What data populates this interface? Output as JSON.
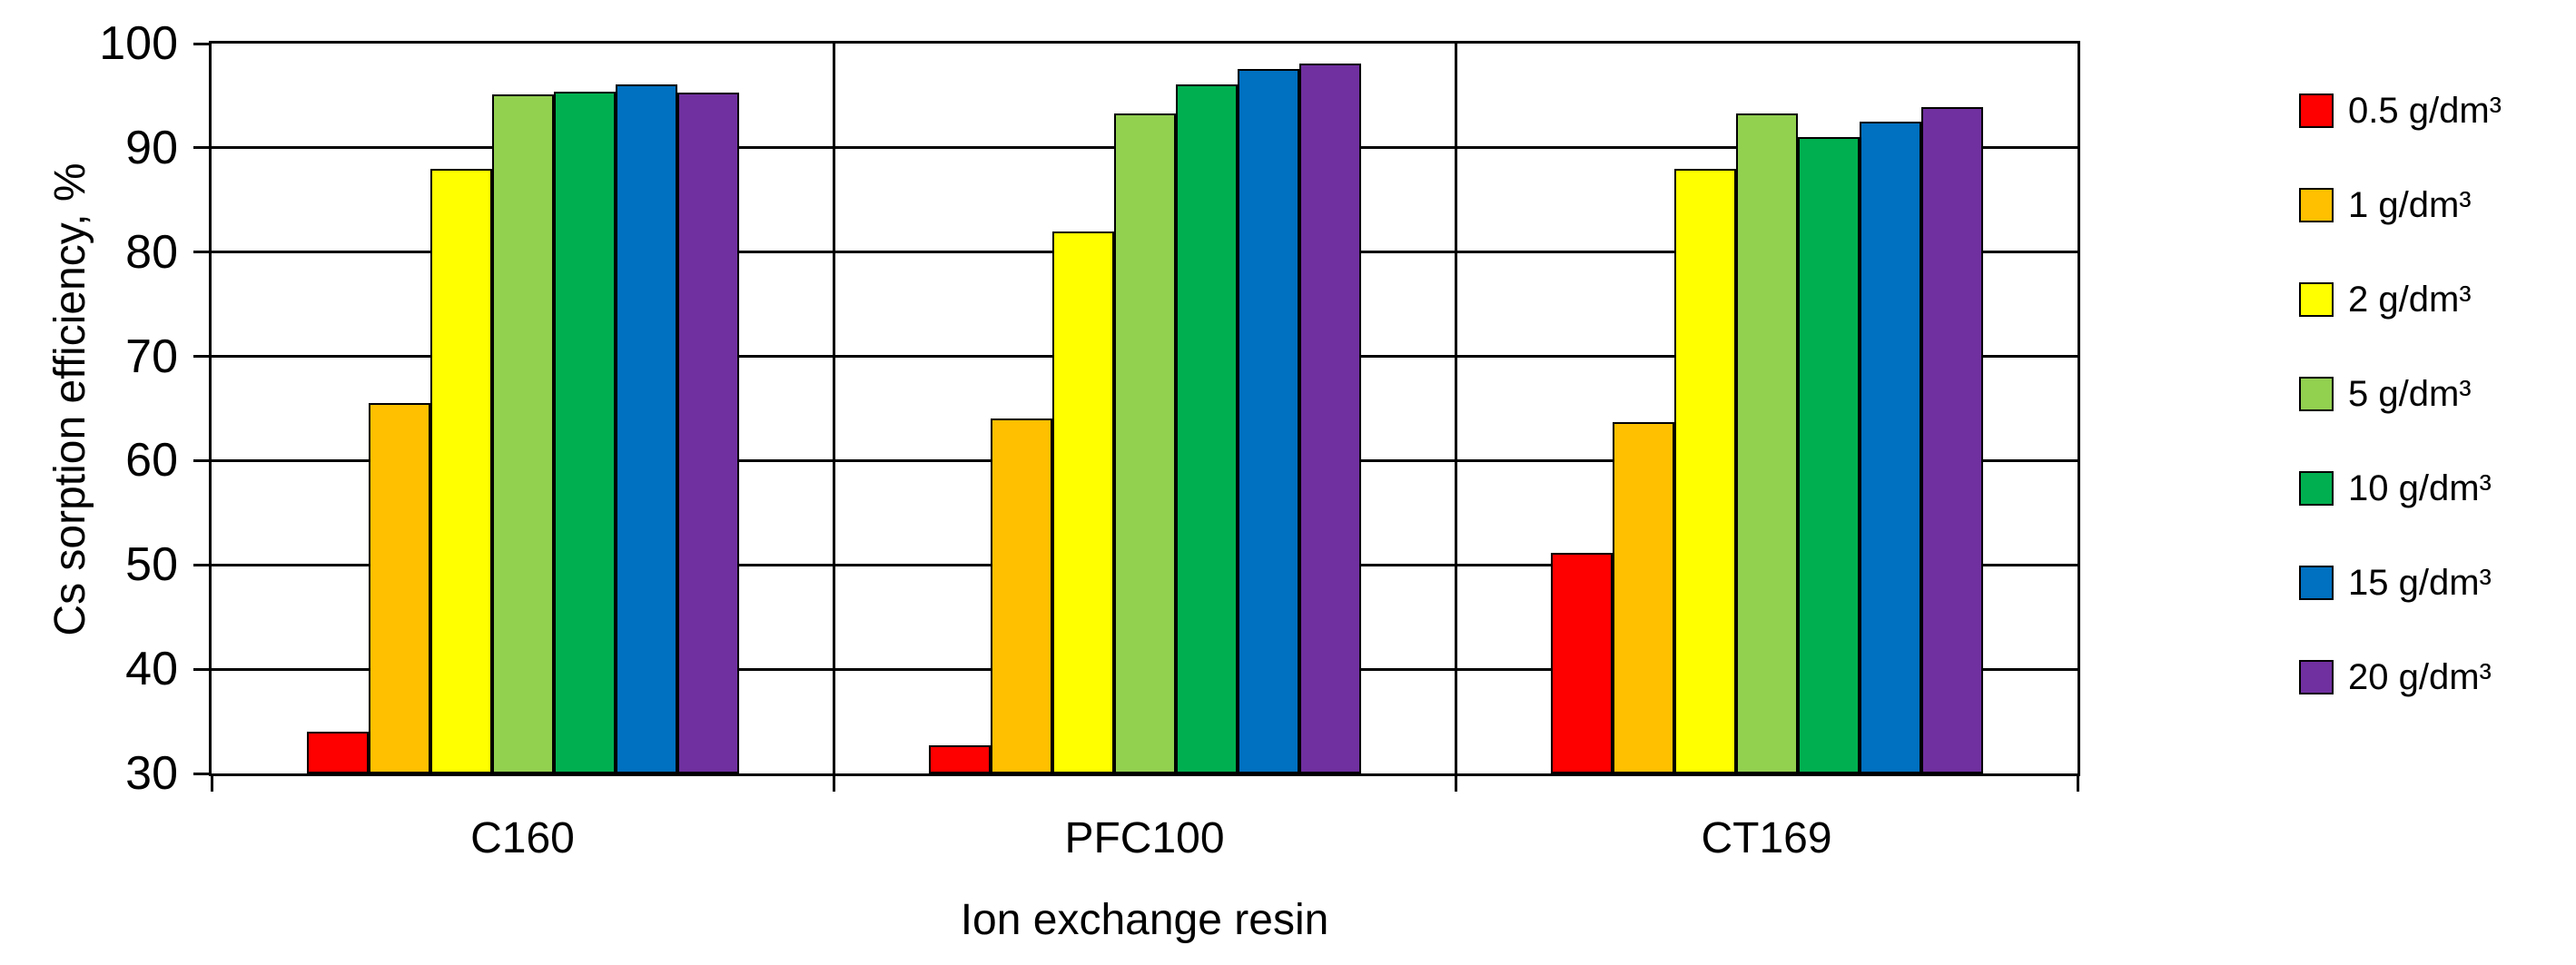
{
  "chart_data": {
    "type": "bar",
    "categories": [
      "C160",
      "PFC100",
      "CT169"
    ],
    "series": [
      {
        "name": "0.5 g/dm³",
        "color": "#FF0000",
        "values": [
          34.0,
          32.7,
          51.2
        ]
      },
      {
        "name": "1 g/dm³",
        "color": "#FFC000",
        "values": [
          65.5,
          64.0,
          63.7
        ]
      },
      {
        "name": "2 g/dm³",
        "color": "#FFFF00",
        "values": [
          88.0,
          82.0,
          88.0
        ]
      },
      {
        "name": "5 g/dm³",
        "color": "#92D050",
        "values": [
          95.1,
          93.3,
          93.3
        ]
      },
      {
        "name": "10 g/dm³",
        "color": "#00B050",
        "values": [
          95.4,
          96.1,
          91.0
        ]
      },
      {
        "name": "15 g/dm³",
        "color": "#0070C0",
        "values": [
          96.1,
          97.6,
          92.5
        ]
      },
      {
        "name": "20 g/dm³",
        "color": "#7030A0",
        "values": [
          95.3,
          98.1,
          93.9
        ]
      }
    ],
    "xlabel": "Ion exchange resin",
    "ylabel": "Cs sorption efficiency, %",
    "ylim": [
      30,
      100
    ],
    "yticks": [
      100,
      90,
      80,
      70,
      60,
      50,
      40,
      30
    ],
    "grid": true,
    "legend_position": "right",
    "axis_color": "#000000",
    "bar_border_color": "#000000",
    "background_color": "#FFFFFF"
  }
}
